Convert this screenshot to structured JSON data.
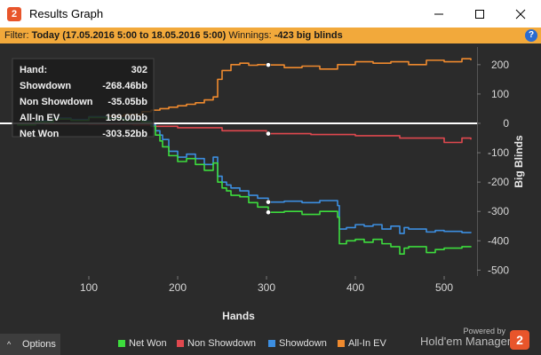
{
  "window": {
    "title": "Results Graph",
    "app_icon_glyph": "2",
    "icons": [
      "app-logo-icon",
      "minimize-icon",
      "maximize-icon",
      "close-icon"
    ]
  },
  "filter": {
    "label": "Filter:",
    "value": "Today (17.05.2016 5:00 to 18.05.2016 5:00)",
    "winnings_label": "Winnings:",
    "winnings_value": "-423 big blinds",
    "help_glyph": "?"
  },
  "tooltip": {
    "rows": [
      {
        "label": "Hand:",
        "value": "302"
      },
      {
        "label": "Showdown",
        "value": "-268.46bb"
      },
      {
        "label": "Non Showdown",
        "value": "-35.05bb"
      },
      {
        "label": "All-In EV",
        "value": "199.00bb"
      },
      {
        "label": "Net Won",
        "value": "-303.52bb"
      }
    ]
  },
  "footer": {
    "options_label": "Options",
    "options_glyph": "^",
    "powered_by": "Powered by",
    "brand": "Hold'em Manager",
    "brand_logo_glyph": "2"
  },
  "colors": {
    "net_won": "#3ddc3d",
    "non_showdown": "#e0484e",
    "showdown": "#3c8ee0",
    "all_in_ev": "#ef8a2e",
    "background": "#2b2b2b",
    "filter_bar": "#f2a93b"
  },
  "chart_data": {
    "type": "line",
    "xlabel": "Hands",
    "ylabel": "Big Blinds",
    "xlim": [
      0,
      537
    ],
    "ylim": [
      -520,
      260
    ],
    "x_ticks": [
      100,
      200,
      300,
      400,
      500
    ],
    "y_ticks": [
      200,
      100,
      0,
      -100,
      -200,
      -300,
      -400,
      -500
    ],
    "zero_line": true,
    "crosshair_x": 302,
    "legend_position": "bottom",
    "series": [
      {
        "name": "Net Won",
        "color": "#3ddc3d",
        "x": [
          0,
          20,
          40,
          60,
          80,
          100,
          120,
          140,
          160,
          170,
          175,
          180,
          183,
          190,
          200,
          210,
          220,
          230,
          240,
          245,
          250,
          255,
          260,
          270,
          280,
          290,
          302,
          320,
          340,
          360,
          380,
          382,
          390,
          400,
          410,
          420,
          430,
          440,
          450,
          455,
          460,
          480,
          490,
          500,
          520,
          530
        ],
        "y": [
          0,
          -5,
          5,
          15,
          10,
          20,
          15,
          10,
          5,
          -10,
          -40,
          -60,
          -80,
          -110,
          -130,
          -120,
          -140,
          -160,
          -135,
          -200,
          -220,
          -230,
          -245,
          -250,
          -270,
          -285,
          -303,
          -300,
          -310,
          -300,
          -320,
          -410,
          -400,
          -395,
          -405,
          -395,
          -410,
          -420,
          -445,
          -425,
          -420,
          -440,
          -430,
          -425,
          -420,
          -422
        ]
      },
      {
        "name": "Non Showdown",
        "color": "#e0484e",
        "x": [
          0,
          50,
          100,
          150,
          175,
          200,
          250,
          300,
          350,
          400,
          450,
          500,
          520,
          530
        ],
        "y": [
          0,
          -2,
          -3,
          -5,
          -10,
          -15,
          -25,
          -35,
          -38,
          -42,
          -50,
          -65,
          -50,
          -55
        ]
      },
      {
        "name": "Showdown",
        "color": "#3c8ee0",
        "x": [
          0,
          20,
          40,
          60,
          80,
          100,
          120,
          140,
          160,
          170,
          175,
          180,
          183,
          190,
          200,
          210,
          220,
          230,
          240,
          245,
          250,
          255,
          260,
          270,
          280,
          290,
          302,
          320,
          340,
          360,
          380,
          382,
          390,
          400,
          410,
          420,
          430,
          440,
          450,
          455,
          460,
          480,
          490,
          500,
          520,
          530
        ],
        "y": [
          0,
          -3,
          8,
          18,
          13,
          23,
          18,
          13,
          8,
          -5,
          -25,
          -40,
          -55,
          -95,
          -115,
          -105,
          -120,
          -140,
          -115,
          -180,
          -200,
          -210,
          -220,
          -230,
          -245,
          -255,
          -268,
          -265,
          -270,
          -263,
          -280,
          -360,
          -355,
          -345,
          -350,
          -345,
          -360,
          -350,
          -375,
          -355,
          -360,
          -370,
          -365,
          -368,
          -372,
          -370
        ]
      },
      {
        "name": "All-In EV",
        "color": "#ef8a2e",
        "x": [
          0,
          20,
          40,
          60,
          80,
          100,
          120,
          140,
          160,
          170,
          180,
          190,
          200,
          210,
          220,
          230,
          240,
          245,
          250,
          260,
          270,
          280,
          290,
          302,
          320,
          340,
          360,
          380,
          400,
          420,
          440,
          460,
          480,
          500,
          520,
          530
        ],
        "y": [
          0,
          -5,
          5,
          15,
          10,
          20,
          25,
          30,
          40,
          45,
          50,
          55,
          60,
          65,
          70,
          80,
          90,
          150,
          180,
          200,
          205,
          198,
          200,
          199,
          190,
          195,
          185,
          200,
          210,
          205,
          210,
          200,
          215,
          210,
          220,
          215
        ]
      }
    ]
  }
}
